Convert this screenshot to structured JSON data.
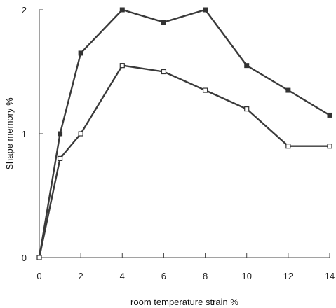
{
  "chart_data": {
    "type": "line",
    "title": "",
    "xlabel": "room temperature strain %",
    "ylabel": "Shape memory %",
    "xlim": [
      0,
      14
    ],
    "ylim": [
      0,
      2
    ],
    "x_ticks": [
      "0",
      "2",
      "4",
      "6",
      "8",
      "10",
      "12",
      "14"
    ],
    "y_ticks": [
      "0",
      "1",
      "2"
    ],
    "grid": false,
    "legend": "none",
    "series": [
      {
        "marker": "filled-square",
        "color": "#333333",
        "x": [
          0,
          1,
          2,
          4,
          6,
          8,
          10,
          12,
          14
        ],
        "y": [
          0,
          1.0,
          1.65,
          2.0,
          1.9,
          2.0,
          1.55,
          1.35,
          1.15
        ]
      },
      {
        "marker": "open-square",
        "color": "#333333",
        "x": [
          0,
          1,
          2,
          4,
          6,
          8,
          10,
          12,
          14
        ],
        "y": [
          0,
          0.8,
          1.0,
          1.55,
          1.5,
          1.35,
          1.2,
          0.9,
          0.9
        ]
      }
    ]
  }
}
